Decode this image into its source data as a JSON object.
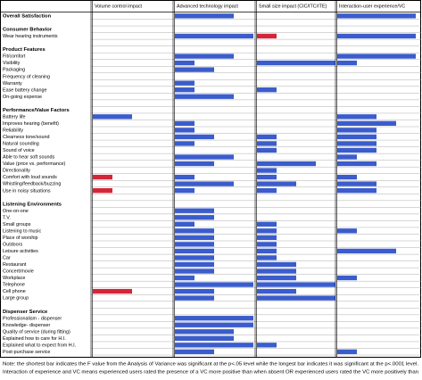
{
  "header": {
    "columns": [
      "Volume control impact",
      "Advanced technology impact",
      "Small size impact (CIC/ITC/ITE)",
      "Interaction-user experience/VC"
    ]
  },
  "bar_color": "#3a5ccc",
  "highlight_color": "#d42638",
  "sections": [
    {
      "title": "Overall Satisfaction",
      "values": [
        null,
        3,
        null,
        4
      ],
      "rows": []
    },
    {
      "title": "Consumer Behavior",
      "rows": [
        {
          "label": "Wear hearing instruments",
          "values": [
            null,
            4,
            1,
            4
          ],
          "red": [
            2
          ]
        }
      ]
    },
    {
      "title": "Product Features",
      "rows": [
        {
          "label": "Fit/comfort",
          "values": [
            null,
            3,
            null,
            4
          ]
        },
        {
          "label": "Visibility",
          "values": [
            null,
            1,
            4,
            1
          ]
        },
        {
          "label": "Packaging",
          "values": [
            null,
            2,
            null,
            null
          ]
        },
        {
          "label": "Frequency of cleaning",
          "values": [
            null,
            null,
            null,
            null
          ]
        },
        {
          "label": "Warranty",
          "values": [
            null,
            1,
            null,
            null
          ]
        },
        {
          "label": "Ease battery change",
          "values": [
            null,
            1,
            1,
            null
          ]
        },
        {
          "label": "On-going expense",
          "values": [
            null,
            3,
            null,
            null
          ]
        }
      ]
    },
    {
      "title": "Performance/Value Factors",
      "rows": [
        {
          "label": "Battery life",
          "values": [
            2,
            null,
            null,
            2
          ]
        },
        {
          "label": "Improves hearing (benefit)",
          "values": [
            null,
            1,
            null,
            3
          ]
        },
        {
          "label": "Reliability",
          "values": [
            null,
            1,
            null,
            2
          ]
        },
        {
          "label": "Clearness tone/sound",
          "values": [
            null,
            2,
            1,
            2
          ]
        },
        {
          "label": "Natural sounding",
          "values": [
            null,
            1,
            1,
            2
          ]
        },
        {
          "label": "Sound of voice",
          "values": [
            null,
            null,
            1,
            2
          ]
        },
        {
          "label": "Able to hear soft sounds",
          "values": [
            null,
            3,
            null,
            1
          ]
        },
        {
          "label": "Value (price vs. performance)",
          "values": [
            null,
            2,
            3,
            2
          ]
        },
        {
          "label": "Directionality",
          "values": [
            null,
            null,
            1,
            null
          ]
        },
        {
          "label": "Comfort with loud sounds",
          "values": [
            1,
            1,
            1,
            1
          ],
          "red": [
            0
          ]
        },
        {
          "label": "Whistling/feedback/buzzing",
          "values": [
            null,
            3,
            2,
            2
          ]
        },
        {
          "label": "Use in noisy situations",
          "values": [
            1,
            1,
            1,
            2
          ],
          "red": [
            0
          ]
        }
      ]
    },
    {
      "title": "Listening Environments",
      "rows": [
        {
          "label": "One-on-one",
          "values": [
            null,
            2,
            null,
            null
          ]
        },
        {
          "label": "T.V.",
          "values": [
            null,
            2,
            null,
            null
          ]
        },
        {
          "label": "Small groups",
          "values": [
            null,
            1,
            1,
            null
          ]
        },
        {
          "label": "Listening to music",
          "values": [
            null,
            2,
            1,
            1
          ]
        },
        {
          "label": "Place of worship",
          "values": [
            null,
            2,
            1,
            null
          ]
        },
        {
          "label": "Outdoors",
          "values": [
            null,
            2,
            1,
            null
          ]
        },
        {
          "label": "Leisure activities",
          "values": [
            null,
            2,
            1,
            3
          ]
        },
        {
          "label": "Car",
          "values": [
            null,
            2,
            1,
            null
          ]
        },
        {
          "label": "Restaurant",
          "values": [
            null,
            2,
            2,
            null
          ]
        },
        {
          "label": "Concert/movie",
          "values": [
            null,
            2,
            2,
            null
          ]
        },
        {
          "label": "Workplace",
          "values": [
            null,
            1,
            2,
            1
          ]
        },
        {
          "label": "Telephone",
          "values": [
            null,
            4,
            4,
            null
          ]
        },
        {
          "label": "Cell phone",
          "values": [
            2,
            2,
            2,
            null
          ],
          "red": [
            0
          ]
        },
        {
          "label": "Large group",
          "values": [
            null,
            2,
            4,
            null
          ]
        }
      ]
    },
    {
      "title": "Dispenser Service",
      "rows": [
        {
          "label": "Professionalism - dispenser",
          "values": [
            null,
            4,
            null,
            null
          ]
        },
        {
          "label": "Knowledge- dispenser",
          "values": [
            null,
            4,
            null,
            null
          ]
        },
        {
          "label": "Quality of service (during fitting)",
          "values": [
            null,
            3,
            null,
            null
          ]
        },
        {
          "label": "Explained how to care for H.I.",
          "values": [
            null,
            3,
            null,
            null
          ]
        },
        {
          "label": "Explained what to expect from H.I.",
          "values": [
            null,
            4,
            1,
            null
          ]
        },
        {
          "label": "Post-purchase service",
          "values": [
            null,
            2,
            null,
            1
          ]
        }
      ]
    }
  ],
  "notes": [
    "Note: the shortest bar indicates the F value from the Analysis of Variance was significant at the p<.05 level while the longest bar indicates it was significant at the p<.0001 level.",
    "Interaction of experience and VC means experienced users rated the presence of a VC more positive than when absent OR experienced users rated the VC more positively than"
  ]
}
